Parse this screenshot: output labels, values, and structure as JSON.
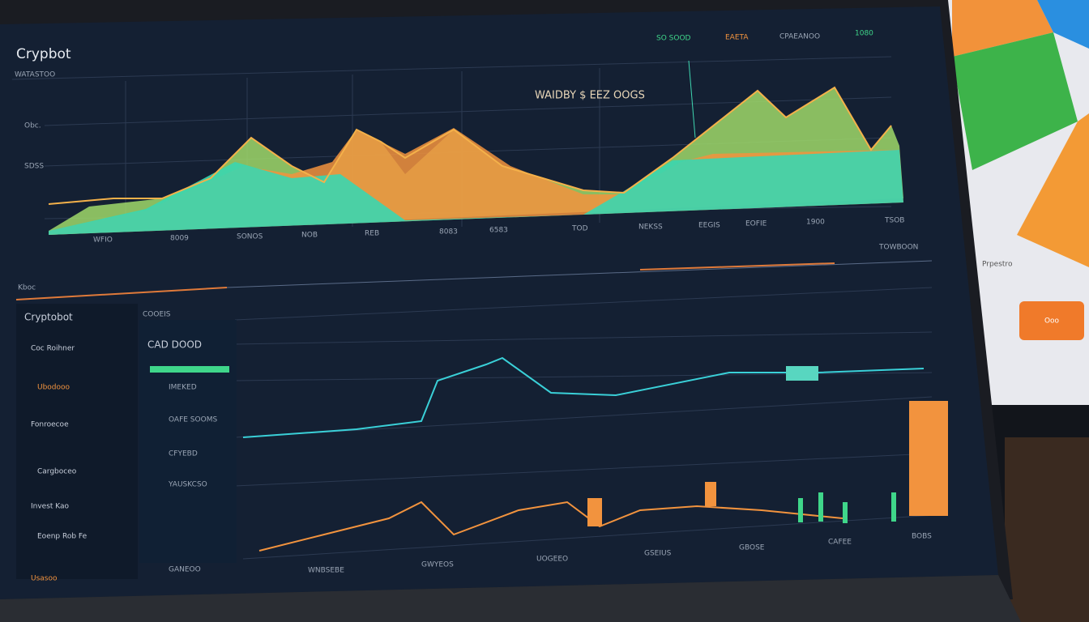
{
  "header": {
    "title": "Crypbot",
    "subtitle": "WATASTOO",
    "side_labels": [
      "Obc.",
      "SDSS"
    ]
  },
  "top_legend": [
    "SO SOOD",
    "EAETA",
    "CPAEANOO",
    "1080"
  ],
  "top_chart": {
    "annotation": "WAIDBY $ EEZ OOGS",
    "x_labels": [
      "WFIO",
      "8009",
      "SONOS",
      "NOB",
      "REB",
      "8083",
      "6583",
      "TOD",
      "NEKSS",
      "EEGIS",
      "EOFIE",
      "1900",
      "TSOB"
    ]
  },
  "section_label": "Kboc",
  "bottom_title": "TOWBOON",
  "sidebar": {
    "title": "Cryptobot",
    "items": [
      "Coc Roihner",
      "Ubodooo",
      "Fonroecoe",
      "Cargboceo",
      "Invest Kao",
      "Eoenp Rob Fe",
      "Usasoo"
    ]
  },
  "panel": {
    "title": "COOEIS",
    "header": "CAD DOOD",
    "items": [
      "IMEKED",
      "OAFE SOOMS",
      "CFYEBD",
      "YAUSKCSO",
      "GANEOO"
    ]
  },
  "bottom_labels": [
    "WNBSEBE",
    "GWYEOS",
    "UOGEEO",
    "GSEIUS",
    "GBOSE",
    "CAFEE",
    "BOBS"
  ],
  "right_screen": {
    "label": "Prpestro",
    "button": "Ooo"
  }
}
